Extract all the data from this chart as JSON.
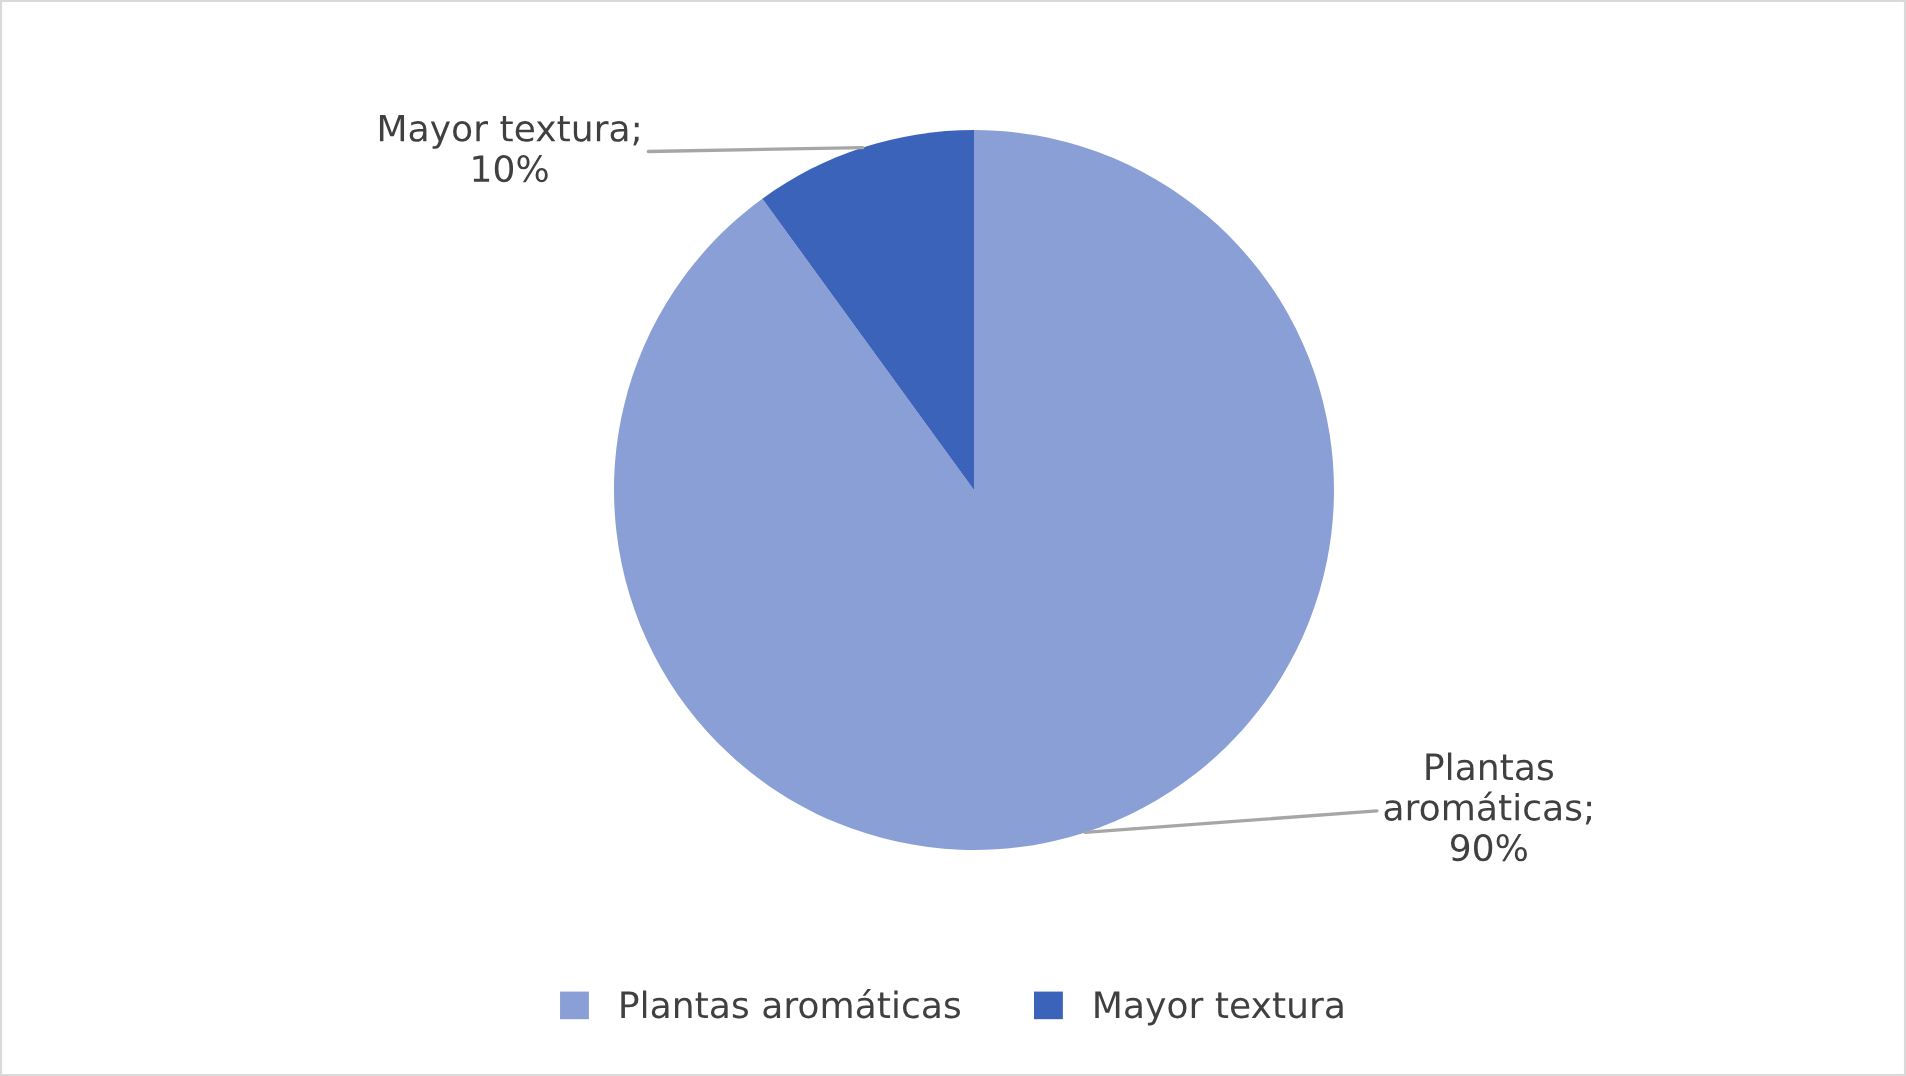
{
  "chart_data": {
    "type": "pie",
    "categories": [
      "Plantas aromáticas",
      "Mayor textura"
    ],
    "values": [
      90,
      10
    ],
    "colors": [
      "#8a9fd6",
      "#3b63b9"
    ],
    "value_labels": [
      "Plantas\naromáticas;\n90%",
      "Mayor textura;\n10%"
    ],
    "legend": "bottom"
  }
}
